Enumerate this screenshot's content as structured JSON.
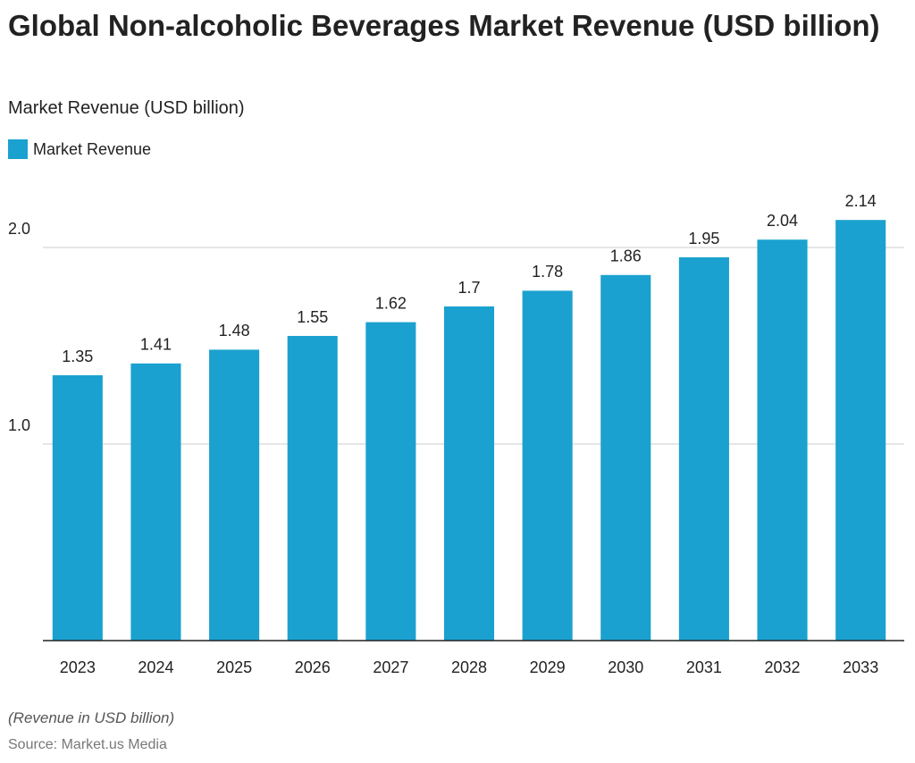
{
  "chart_data": {
    "type": "bar",
    "title": "Global Non-alcoholic Beverages Market Revenue (USD billion)",
    "subtitle": "Market Revenue (USD billion)",
    "categories": [
      "2023",
      "2024",
      "2025",
      "2026",
      "2027",
      "2028",
      "2029",
      "2030",
      "2031",
      "2032",
      "2033"
    ],
    "series": [
      {
        "name": "Market Revenue",
        "color": "#1ba1cf",
        "values": [
          1.35,
          1.41,
          1.48,
          1.55,
          1.62,
          1.7,
          1.78,
          1.86,
          1.95,
          2.04,
          2.14
        ]
      }
    ],
    "ylim": [
      0,
      2.3
    ],
    "yticks": [
      {
        "value": 1,
        "label": "1.0"
      },
      {
        "value": 2,
        "label": "2.0"
      }
    ],
    "grid": true,
    "note": "(Revenue in USD billion)",
    "source": "Source: Market.us Media"
  }
}
